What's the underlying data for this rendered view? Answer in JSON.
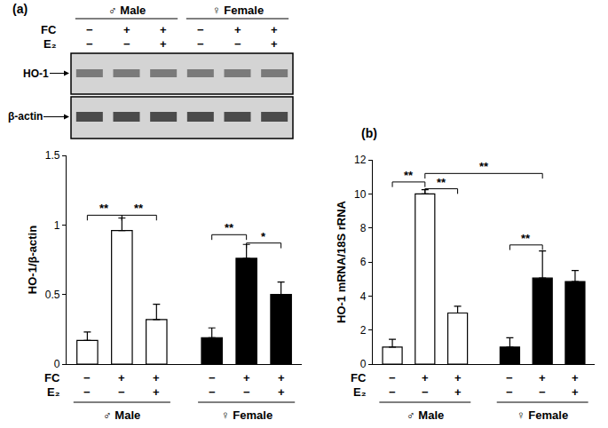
{
  "chart_data": [
    {
      "type": "bar",
      "title": "(a)",
      "ylabel": "HO-1/β-actin",
      "ylim": [
        0,
        1.5
      ],
      "yticks": [
        0,
        0.5,
        1,
        1.5
      ],
      "values": [
        0.17,
        0.96,
        0.32,
        0.19,
        0.76,
        0.5
      ],
      "errors": [
        0.06,
        0.09,
        0.11,
        0.07,
        0.1,
        0.09
      ],
      "colors": [
        "#ffffff",
        "#ffffff",
        "#ffffff",
        "#000000",
        "#000000",
        "#000000"
      ],
      "x_rows": [
        {
          "label": "FC",
          "values": [
            "−",
            "+",
            "+",
            "−",
            "+",
            "+"
          ]
        },
        {
          "label": "E₂",
          "values": [
            "−",
            "−",
            "+",
            "−",
            "−",
            "+"
          ]
        }
      ],
      "groups": [
        {
          "label": "♂ Male",
          "first": 0,
          "last": 2
        },
        {
          "label": "♀ Female",
          "first": 3,
          "last": 5
        }
      ],
      "significance": [
        {
          "from": 0,
          "to": 1,
          "y": 1.07,
          "label": "**"
        },
        {
          "from": 1,
          "to": 2,
          "y": 1.07,
          "label": "**"
        },
        {
          "from": 3,
          "to": 4,
          "y": 0.93,
          "label": "**"
        },
        {
          "from": 4,
          "to": 5,
          "y": 0.87,
          "label": "*"
        }
      ],
      "tick_labels": "y"
    },
    {
      "type": "bar",
      "title": "(b)",
      "ylabel": "HO-1 mRNA/18S rRNA",
      "ylim": [
        0,
        12
      ],
      "yticks": [
        0,
        2,
        4,
        6,
        8,
        10,
        12
      ],
      "values": [
        1.0,
        10.0,
        3.0,
        1.0,
        5.05,
        4.85
      ],
      "errors": [
        0.45,
        0.25,
        0.4,
        0.55,
        1.6,
        0.65
      ],
      "colors": [
        "#ffffff",
        "#ffffff",
        "#ffffff",
        "#000000",
        "#000000",
        "#000000"
      ],
      "x_rows": [
        {
          "label": "FC",
          "values": [
            "−",
            "+",
            "+",
            "−",
            "+",
            "+"
          ]
        },
        {
          "label": "E₂",
          "values": [
            "−",
            "−",
            "+",
            "−",
            "−",
            "+"
          ]
        }
      ],
      "groups": [
        {
          "label": "♂ Male",
          "first": 0,
          "last": 2
        },
        {
          "label": "♀ Female",
          "first": 3,
          "last": 5
        }
      ],
      "significance": [
        {
          "from": 0,
          "to": 1,
          "y": 10.7,
          "label": "**"
        },
        {
          "from": 1,
          "to": 2,
          "y": 10.3,
          "label": "**"
        },
        {
          "from": 1,
          "to": 4,
          "y": 11.2,
          "label": "**"
        },
        {
          "from": 3,
          "to": 4,
          "y": 7.0,
          "label": "**"
        }
      ],
      "tick_labels": "y"
    }
  ],
  "blot": {
    "groups": [
      {
        "label": "♂ Male",
        "first": 0,
        "last": 2
      },
      {
        "label": "♀ Female",
        "first": 3,
        "last": 5
      }
    ],
    "rows": [
      {
        "label": "FC",
        "values": [
          "−",
          "+",
          "+",
          "−",
          "+",
          "+"
        ]
      },
      {
        "label": "E₂",
        "values": [
          "−",
          "−",
          "+",
          "−",
          "−",
          "+"
        ]
      }
    ],
    "bands": [
      "HO-1",
      "β-actin"
    ]
  }
}
